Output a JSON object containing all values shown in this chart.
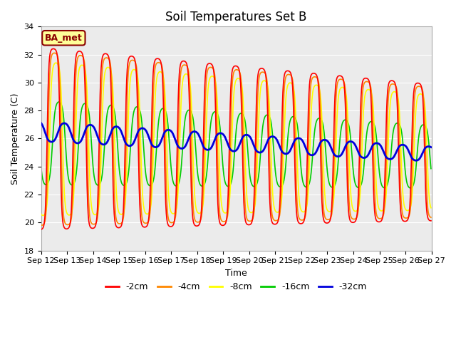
{
  "title": "Soil Temperatures Set B",
  "xlabel": "Time",
  "ylabel": "Soil Temperature (C)",
  "ylim": [
    18,
    34
  ],
  "yticks": [
    18,
    20,
    22,
    24,
    26,
    28,
    30,
    32,
    34
  ],
  "x_labels": [
    "Sep 12",
    "Sep 13",
    "Sep 14",
    "Sep 15",
    "Sep 16",
    "Sep 17",
    "Sep 18",
    "Sep 19",
    "Sep 20",
    "Sep 21",
    "Sep 22",
    "Sep 23",
    "Sep 24",
    "Sep 25",
    "Sep 26",
    "Sep 27"
  ],
  "colors": {
    "-2cm": "#ff0000",
    "-4cm": "#ff8800",
    "-8cm": "#ffff00",
    "-16cm": "#00cc00",
    "-32cm": "#0000dd"
  },
  "bg_color": "#ebebeb",
  "annotation_text": "BA_met",
  "annotation_color": "#8b0000",
  "annotation_bg": "#ffff99",
  "title_fontsize": 12,
  "axis_fontsize": 9,
  "tick_fontsize": 8
}
